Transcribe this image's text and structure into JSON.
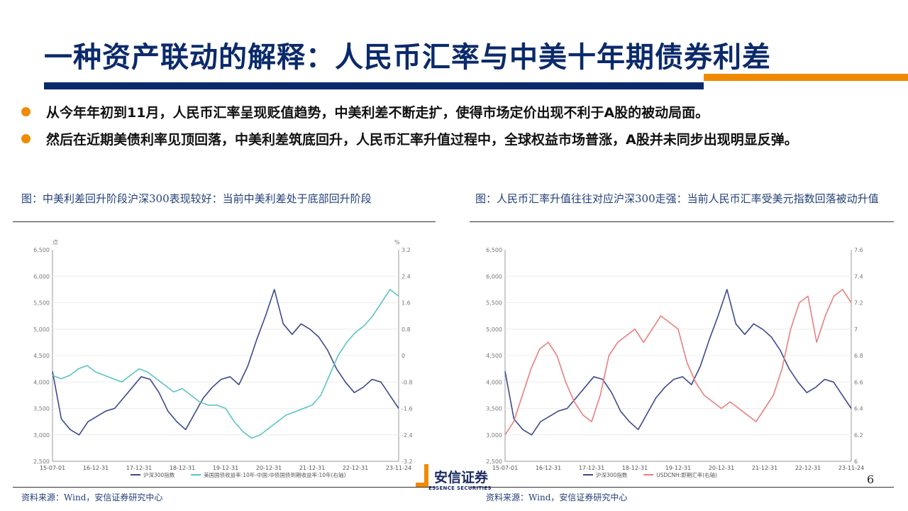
{
  "slide": {
    "title": "一种资产联动的解释：人民币汇率与中美十年期债券利差",
    "bullets": [
      "从今年年初到11月，人民币汇率呈现贬值趋势，中美利差不断走扩，使得市场定价出现不利于A股的被动局面。",
      "然后在近期美债利率见顶回落，中美利差筑底回升，人民币汇率升值过程中，全球权益市场普涨，A股并未同步出现明显反弹。"
    ],
    "page_number": "6",
    "logo": {
      "cn": "安信证券",
      "en": "ESSENCE SECURITIES"
    },
    "colors": {
      "title": "#0b2a6b",
      "accent": "#f08a00"
    }
  },
  "chart_data": [
    {
      "type": "line",
      "caption": "图：中美利差回升阶段沪深300表现较好：当前中美利差处于底部回升阶段",
      "source": "资料来源：Wind，安信证券研究中心",
      "left_unit": "点",
      "right_unit": "%",
      "left_ticks": [
        "6,500",
        "6,000",
        "5,500",
        "5,000",
        "4,500",
        "4,000",
        "3,500",
        "3,000",
        "2,500"
      ],
      "right_ticks": [
        "3.2",
        "2.4",
        "1.6",
        "0.8",
        "0",
        "-0.8",
        "-1.6",
        "-2.4",
        "-3.2"
      ],
      "x_ticks": [
        "15-07-01",
        "16-12-31",
        "17-12-31",
        "18-12-31",
        "19-12-31",
        "20-12-31",
        "21-12-31",
        "22-12-31",
        "23-11-24"
      ],
      "ylim": [
        2500,
        6500
      ],
      "y2lim": [
        -3.2,
        3.2
      ],
      "series": [
        {
          "name": "沪深300指数",
          "axis": "left",
          "color": "#3d4a8c",
          "values": [
            4200,
            3300,
            3100,
            3000,
            3250,
            3350,
            3450,
            3500,
            3700,
            3900,
            4100,
            4050,
            3800,
            3450,
            3250,
            3100,
            3400,
            3700,
            3900,
            4050,
            4100,
            3950,
            4300,
            4800,
            5250,
            5750,
            5100,
            4900,
            5100,
            5000,
            4850,
            4600,
            4250,
            4000,
            3800,
            3900,
            4050,
            4000,
            3750,
            3500
          ]
        },
        {
          "name": "美国国债收益率:10年-中国:中债国债到期收益率:10年(右轴)",
          "axis": "right",
          "color": "#5bc4c4",
          "values": [
            -0.6,
            -0.7,
            -0.6,
            -0.4,
            -0.3,
            -0.5,
            -0.6,
            -0.7,
            -0.8,
            -0.6,
            -0.4,
            -0.5,
            -0.7,
            -0.9,
            -1.1,
            -1.0,
            -1.2,
            -1.4,
            -1.5,
            -1.5,
            -1.6,
            -2.0,
            -2.3,
            -2.5,
            -2.4,
            -2.2,
            -2.0,
            -1.8,
            -1.7,
            -1.6,
            -1.5,
            -1.2,
            -0.6,
            0.0,
            0.4,
            0.7,
            0.9,
            1.2,
            1.6,
            2.0,
            1.8
          ]
        }
      ]
    },
    {
      "type": "line",
      "caption": "图：人民币汇率升值往往对应沪深300走强：当前人民币汇率受美元指数回落被动升值",
      "source": "资料来源：Wind，安信证券研究中心",
      "left_unit": "",
      "right_unit": "",
      "left_ticks": [
        "6,500",
        "6,000",
        "5,500",
        "5,000",
        "4,500",
        "4,000",
        "3,500",
        "3,000",
        "2,500"
      ],
      "right_ticks": [
        "7.6",
        "7.4",
        "7.2",
        "7",
        "6.8",
        "6.6",
        "6.4",
        "6.2",
        "6"
      ],
      "x_ticks": [
        "15-07-01",
        "16-12-31",
        "17-12-31",
        "18-12-31",
        "19-12-31",
        "20-12-31",
        "21-12-31",
        "22-12-31",
        "23-11-24"
      ],
      "ylim": [
        2500,
        6500
      ],
      "y2lim": [
        6.0,
        7.6
      ],
      "series": [
        {
          "name": "沪深300指数",
          "axis": "left",
          "color": "#3d4a8c",
          "values": [
            4200,
            3300,
            3100,
            3000,
            3250,
            3350,
            3450,
            3500,
            3700,
            3900,
            4100,
            4050,
            3800,
            3450,
            3250,
            3100,
            3400,
            3700,
            3900,
            4050,
            4100,
            3950,
            4300,
            4800,
            5250,
            5750,
            5100,
            4900,
            5100,
            5000,
            4850,
            4600,
            4250,
            4000,
            3800,
            3900,
            4050,
            4000,
            3750,
            3500
          ]
        },
        {
          "name": "USDCNH:即期汇率(右轴)",
          "axis": "right",
          "color": "#e97f7f",
          "values": [
            6.2,
            6.3,
            6.5,
            6.7,
            6.85,
            6.9,
            6.8,
            6.6,
            6.45,
            6.35,
            6.3,
            6.5,
            6.8,
            6.9,
            6.95,
            7.0,
            6.9,
            7.0,
            7.1,
            7.05,
            7.0,
            6.75,
            6.6,
            6.5,
            6.45,
            6.4,
            6.45,
            6.4,
            6.35,
            6.3,
            6.4,
            6.5,
            6.7,
            7.0,
            7.2,
            7.25,
            6.9,
            7.1,
            7.25,
            7.3,
            7.2
          ]
        }
      ]
    }
  ]
}
